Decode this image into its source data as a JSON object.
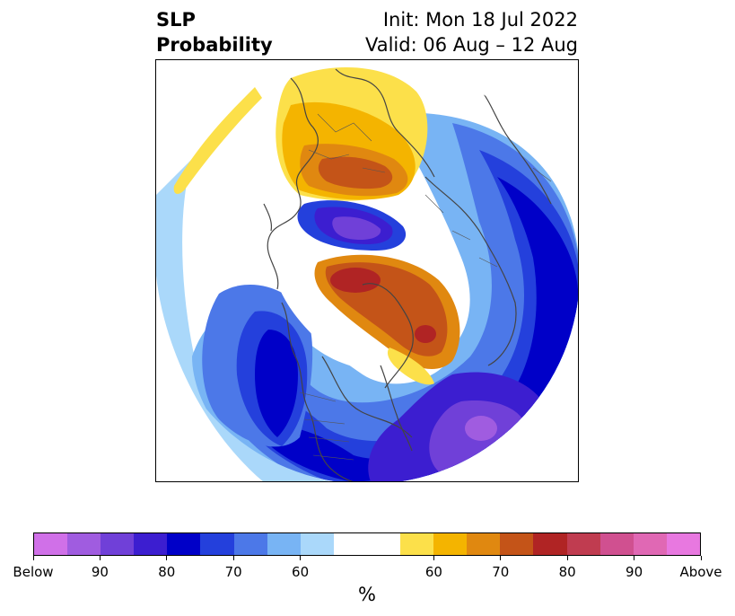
{
  "header": {
    "title_line1": "SLP",
    "title_line2": "Probability",
    "init_line": "Init: Mon 18 Jul 2022",
    "valid_line": "Valid: 06 Aug – 12 Aug"
  },
  "colorbar": {
    "colors": [
      "#d070e8",
      "#a05ce0",
      "#7040d8",
      "#3c1ed0",
      "#0000c8",
      "#2440dc",
      "#4c78e8",
      "#78b4f4",
      "#aad8fa",
      "#ffffff",
      "#ffffff",
      "#fce04a",
      "#f4b400",
      "#e08810",
      "#c45418",
      "#b02424",
      "#c03c50",
      "#d05090",
      "#e068b4",
      "#e878e0"
    ],
    "tick_labels": [
      "Below",
      "90",
      "80",
      "70",
      "60",
      "60",
      "70",
      "80",
      "90",
      "Above"
    ],
    "unit_label": "%"
  }
}
